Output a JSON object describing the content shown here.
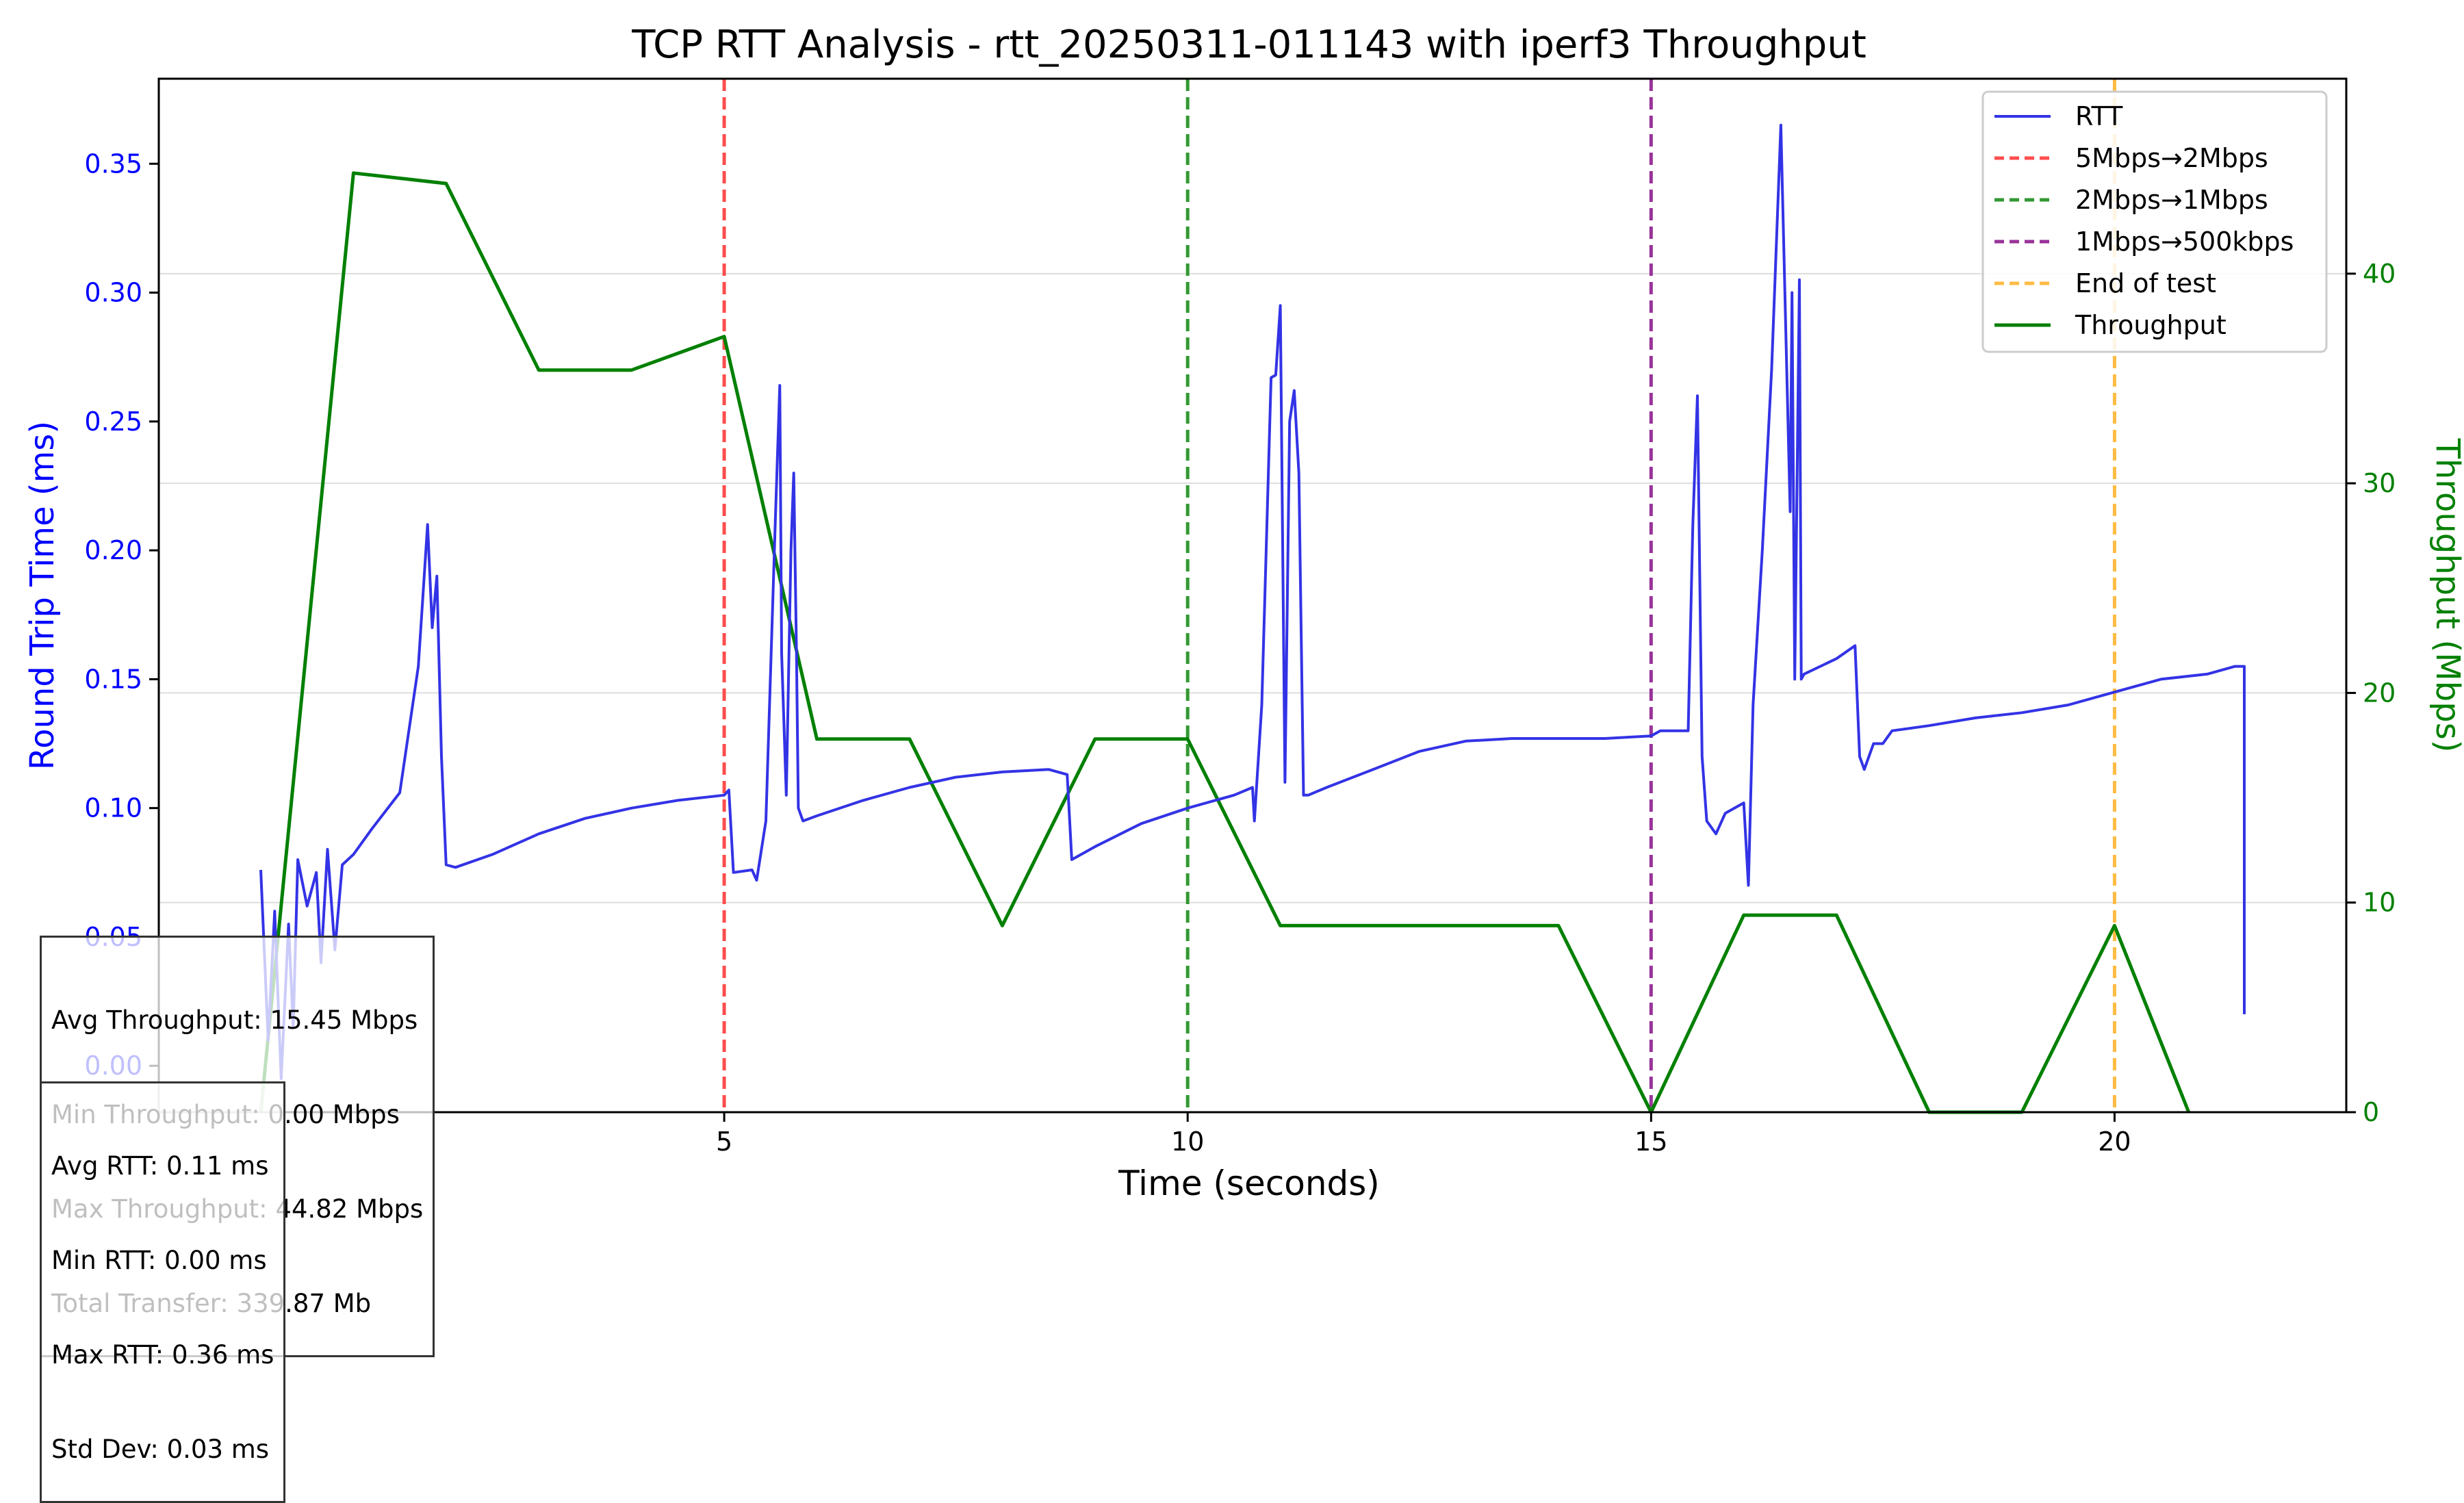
{
  "chart_data": {
    "type": "line",
    "title": "TCP RTT Analysis - rtt_20250311-011143 with iperf3 Throughput",
    "xlabel": "Time (seconds)",
    "ylabel": "Round Trip Time (ms)",
    "y2label": "Throughput (Mbps)",
    "xlim": [
      -1.1,
      22.5
    ],
    "ylim": [
      -0.018,
      0.383
    ],
    "y2lim": [
      0,
      49.3
    ],
    "x_ticks": [
      "5",
      "10",
      "15",
      "20"
    ],
    "y_ticks": [
      "0.00",
      "0.05",
      "0.10",
      "0.15",
      "0.20",
      "0.25",
      "0.30",
      "0.35"
    ],
    "y2_ticks": [
      "0",
      "10",
      "20",
      "30",
      "40"
    ],
    "grid": "horizontal (throughput axis)",
    "legend_position": "top-right",
    "legend": [
      "RTT",
      "5Mbps→2Mbps",
      "2Mbps→1Mbps",
      "1Mbps→500kbps",
      "End of test",
      "Throughput"
    ],
    "colors": {
      "rtt": "#3333e6",
      "throughput": "#008000",
      "change_5_2": "#ff4d4d",
      "change_2_1": "#339933",
      "change_1_05": "#993399",
      "end_of_test": "#ffbb44",
      "rtt_axis": "#0000ff",
      "throughput_axis": "#008000"
    },
    "events": [
      {
        "x": 5,
        "label": "5Mbps→2Mbps",
        "color": "#ff4d4d"
      },
      {
        "x": 10,
        "label": "2Mbps→1Mbps",
        "color": "#339933"
      },
      {
        "x": 15,
        "label": "1Mbps→500kbps",
        "color": "#993399"
      },
      {
        "x": 20,
        "label": "End of test",
        "color": "#ffbb44"
      }
    ],
    "series": [
      {
        "name": "Throughput",
        "axis": "right",
        "x": [
          0,
          1,
          2,
          3,
          4,
          5,
          6,
          7,
          8,
          9,
          10,
          11,
          12,
          13,
          14,
          15,
          16,
          17,
          18,
          19,
          20,
          20.8
        ],
        "y": [
          0,
          44.8,
          44.3,
          35.4,
          35.4,
          37.0,
          17.8,
          17.8,
          8.9,
          17.8,
          17.8,
          8.9,
          8.9,
          8.9,
          8.9,
          0,
          9.4,
          9.4,
          0,
          0,
          8.9,
          0
        ]
      },
      {
        "name": "RTT",
        "axis": "left",
        "x": [
          0,
          0.08,
          0.15,
          0.22,
          0.3,
          0.35,
          0.4,
          0.5,
          0.6,
          0.65,
          0.72,
          0.8,
          0.88,
          1.0,
          1.2,
          1.5,
          1.7,
          1.8,
          1.85,
          1.9,
          1.95,
          2.0,
          2.1,
          2.5,
          3.0,
          3.5,
          4.0,
          4.5,
          5.0,
          5.05,
          5.1,
          5.3,
          5.35,
          5.45,
          5.55,
          5.6,
          5.62,
          5.67,
          5.72,
          5.75,
          5.78,
          5.8,
          5.85,
          6.0,
          6.5,
          7.0,
          7.5,
          8.0,
          8.5,
          8.7,
          8.75,
          9.0,
          9.5,
          10.0,
          10.5,
          10.7,
          10.72,
          10.8,
          10.9,
          10.95,
          11.0,
          11.05,
          11.1,
          11.15,
          11.2,
          11.25,
          11.3,
          11.5,
          12.0,
          12.5,
          13.0,
          13.5,
          14.0,
          14.5,
          15.0,
          15.1,
          15.4,
          15.45,
          15.5,
          15.55,
          15.6,
          15.7,
          15.8,
          16.0,
          16.05,
          16.1,
          16.2,
          16.3,
          16.4,
          16.5,
          16.52,
          16.55,
          16.6,
          16.62,
          16.65,
          17.0,
          17.2,
          17.25,
          17.3,
          17.4,
          17.5,
          17.6,
          18.0,
          18.5,
          19.0,
          19.5,
          20.0,
          20.5,
          21.0,
          21.3,
          21.4,
          21.4
        ],
        "y": [
          0.076,
          0.01,
          0.06,
          -0.005,
          0.055,
          0.015,
          0.08,
          0.062,
          0.075,
          0.04,
          0.084,
          0.045,
          0.078,
          0.082,
          0.092,
          0.106,
          0.155,
          0.21,
          0.17,
          0.19,
          0.12,
          0.078,
          0.077,
          0.082,
          0.09,
          0.096,
          0.1,
          0.103,
          0.105,
          0.107,
          0.075,
          0.076,
          0.072,
          0.095,
          0.21,
          0.264,
          0.16,
          0.105,
          0.2,
          0.23,
          0.16,
          0.1,
          0.095,
          0.097,
          0.103,
          0.108,
          0.112,
          0.114,
          0.115,
          0.113,
          0.08,
          0.085,
          0.094,
          0.1,
          0.105,
          0.108,
          0.095,
          0.14,
          0.267,
          0.268,
          0.295,
          0.11,
          0.25,
          0.262,
          0.23,
          0.105,
          0.105,
          0.108,
          0.115,
          0.122,
          0.126,
          0.127,
          0.127,
          0.127,
          0.128,
          0.13,
          0.13,
          0.21,
          0.26,
          0.12,
          0.095,
          0.09,
          0.098,
          0.102,
          0.07,
          0.14,
          0.2,
          0.27,
          0.365,
          0.215,
          0.3,
          0.15,
          0.305,
          0.15,
          0.152,
          0.158,
          0.163,
          0.12,
          0.115,
          0.125,
          0.125,
          0.13,
          0.132,
          0.135,
          0.137,
          0.14,
          0.145,
          0.15,
          0.152,
          0.155,
          0.155,
          0.02
        ]
      }
    ]
  },
  "stats": {
    "throughput": {
      "avg": "Avg Throughput: 15.45 Mbps",
      "min": "Min Throughput: 0.00 Mbps",
      "max": "Max Throughput: 44.82 Mbps",
      "total": "Total Transfer: 339.87 Mb"
    },
    "rtt": {
      "avg": "Avg RTT: 0.11 ms",
      "min": "Min RTT: 0.00 ms",
      "max": "Max RTT: 0.36 ms",
      "std": "Std Dev: 0.03 ms"
    }
  }
}
